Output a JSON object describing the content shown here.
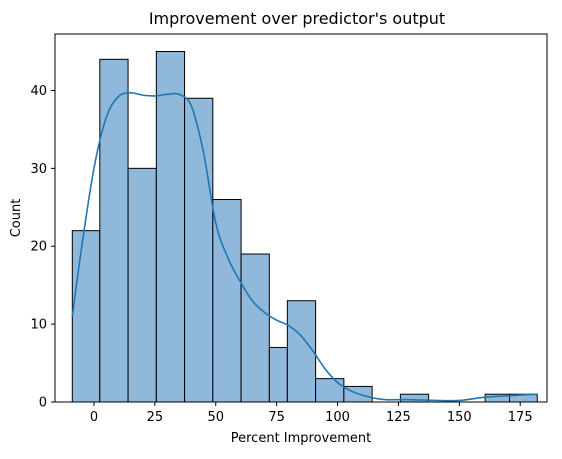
{
  "chart_data": {
    "type": "bar",
    "title": "Improvement over predictor's output",
    "xlabel": "Percent Improvement",
    "ylabel": "Count",
    "xlim": [
      -16,
      186
    ],
    "ylim": [
      0,
      47.25
    ],
    "xticks": [
      0,
      25,
      50,
      75,
      100,
      125,
      150,
      175
    ],
    "yticks": [
      0,
      10,
      20,
      30,
      40
    ],
    "grid": false,
    "legend": "none",
    "bin_edges": [
      -8.9,
      2.9,
      14.7,
      26.5,
      38.3,
      50.1,
      61.9,
      73.7,
      85.5,
      97.3,
      109.1,
      120.9,
      132.7,
      144.5,
      156.3,
      168.1,
      179.9,
      181.7
    ],
    "bins": [
      {
        "x0": -8.9,
        "x1": 2.4,
        "count": 22
      },
      {
        "x0": 2.4,
        "x1": 14.0,
        "count": 44
      },
      {
        "x0": 14.0,
        "x1": 25.6,
        "count": 30
      },
      {
        "x0": 25.6,
        "x1": 37.2,
        "count": 45
      },
      {
        "x0": 37.2,
        "x1": 48.8,
        "count": 39
      },
      {
        "x0": 48.8,
        "x1": 60.4,
        "count": 26
      },
      {
        "x0": 60.4,
        "x1": 72.0,
        "count": 19
      },
      {
        "x0": 72.0,
        "x1": 79.4,
        "count": 7
      },
      {
        "x0": 79.4,
        "x1": 91.0,
        "count": 13
      },
      {
        "x0": 91.0,
        "x1": 102.6,
        "count": 3
      },
      {
        "x0": 102.6,
        "x1": 114.2,
        "count": 2
      },
      {
        "x0": 114.2,
        "x1": 125.8,
        "count": 0
      },
      {
        "x0": 125.8,
        "x1": 137.4,
        "count": 1
      },
      {
        "x0": 137.4,
        "x1": 149.0,
        "count": 0
      },
      {
        "x0": 149.0,
        "x1": 160.6,
        "count": 0
      },
      {
        "x0": 160.6,
        "x1": 170.6,
        "count": 1
      },
      {
        "x0": 170.6,
        "x1": 182.0,
        "count": 1
      }
    ],
    "kde": {
      "name": "",
      "x": [
        -8.9,
        -5,
        0,
        5,
        10,
        15,
        20,
        25,
        30,
        35,
        40,
        45,
        50,
        55,
        60,
        65,
        70,
        75,
        80,
        85,
        90,
        95,
        100,
        105,
        110,
        115,
        120,
        125,
        130,
        140,
        150,
        160,
        170,
        182
      ],
      "y": [
        11,
        20,
        30,
        36.5,
        39.2,
        39.7,
        39.4,
        39.3,
        39.5,
        39.5,
        38,
        32,
        23,
        18.5,
        15.5,
        13,
        11.5,
        10.5,
        9.8,
        8.5,
        6.5,
        4.2,
        2.5,
        1.5,
        0.9,
        0.5,
        0.3,
        0.3,
        0.3,
        0.2,
        0.2,
        0.6,
        0.8,
        1.0
      ]
    },
    "colors": {
      "bar_fill": "#8fb8da",
      "bar_edge": "#000000",
      "kde_line": "#1f77b4",
      "axes": "#000000"
    }
  }
}
